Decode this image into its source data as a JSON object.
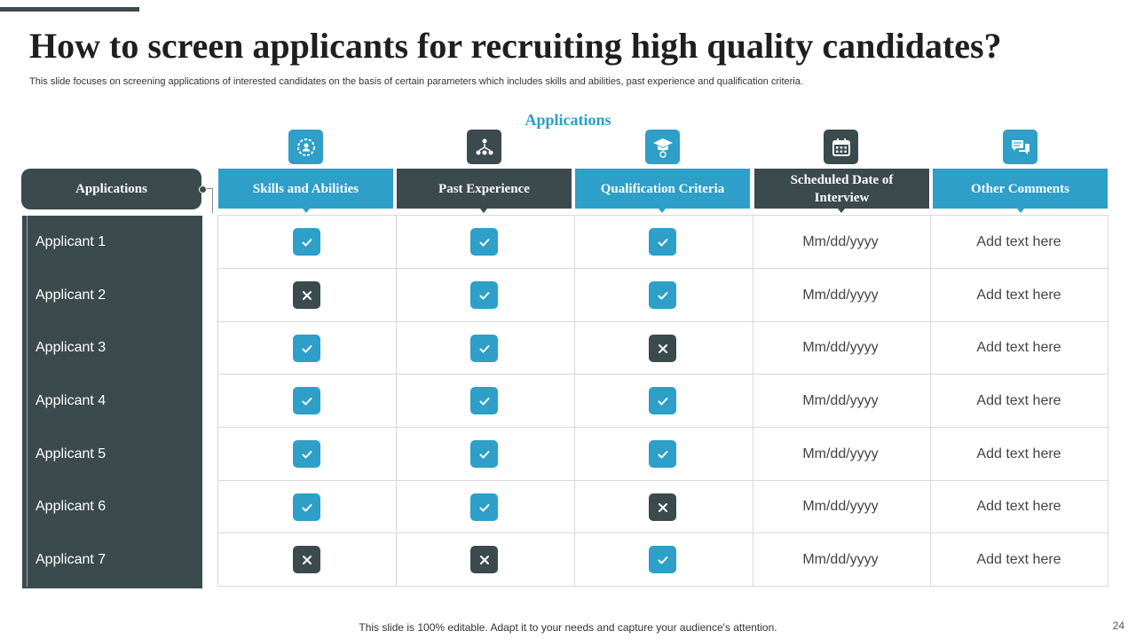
{
  "title": "How to screen applicants for recruiting high quality candidates?",
  "subtitle": "This slide focuses on screening applications of interested candidates on the basis of certain parameters which includes skills and abilities, past experience and qualification criteria.",
  "section_label": "Applications",
  "left_header": "Applications",
  "columns": [
    {
      "label": "Skills and Abilities",
      "style": "blue",
      "icon": "gear-person-icon"
    },
    {
      "label": "Past Experience",
      "style": "dark",
      "icon": "network-people-icon"
    },
    {
      "label": "Qualification  Criteria",
      "style": "blue",
      "icon": "graduation-gear-icon"
    },
    {
      "label": "Scheduled Date of Interview",
      "style": "dark",
      "icon": "calendar-icon"
    },
    {
      "label": "Other Comments",
      "style": "blue",
      "icon": "chat-bubbles-icon"
    }
  ],
  "rows": [
    {
      "name": "Applicant 1",
      "skills": true,
      "experience": true,
      "qualification": true,
      "date": "Mm/dd/yyyy",
      "comment": "Add text here"
    },
    {
      "name": "Applicant 2",
      "skills": false,
      "experience": true,
      "qualification": true,
      "date": "Mm/dd/yyyy",
      "comment": "Add text here"
    },
    {
      "name": "Applicant 3",
      "skills": true,
      "experience": true,
      "qualification": false,
      "date": "Mm/dd/yyyy",
      "comment": "Add text here"
    },
    {
      "name": "Applicant 4",
      "skills": true,
      "experience": true,
      "qualification": true,
      "date": "Mm/dd/yyyy",
      "comment": "Add text here"
    },
    {
      "name": "Applicant 5",
      "skills": true,
      "experience": true,
      "qualification": true,
      "date": "Mm/dd/yyyy",
      "comment": "Add text here"
    },
    {
      "name": "Applicant 6",
      "skills": true,
      "experience": true,
      "qualification": false,
      "date": "Mm/dd/yyyy",
      "comment": "Add text here"
    },
    {
      "name": "Applicant 7",
      "skills": false,
      "experience": false,
      "qualification": true,
      "date": "Mm/dd/yyyy",
      "comment": "Add text here"
    }
  ],
  "footer": "This slide is 100% editable. Adapt it to your needs and capture your audience's attention.",
  "page_number": "24",
  "colors": {
    "accent_blue": "#2d9fc8",
    "dark_slate": "#3b4a4c"
  }
}
